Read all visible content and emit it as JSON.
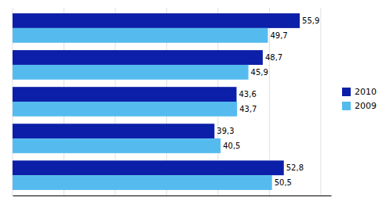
{
  "chart_data": {
    "type": "bar",
    "orientation": "horizontal",
    "categories": [
      null,
      null,
      null,
      null,
      null
    ],
    "series": [
      {
        "name": "2010",
        "color": "#0c1fa8",
        "values": [
          55.9,
          48.7,
          43.6,
          39.3,
          52.8
        ],
        "value_labels": [
          "55,9",
          "48,7",
          "43,6",
          "39,3",
          "52,8"
        ]
      },
      {
        "name": "2009",
        "color": "#55bbee",
        "values": [
          49.7,
          45.9,
          43.7,
          40.5,
          50.5
        ],
        "value_labels": [
          "49,7",
          "45,9",
          "43,7",
          "40,5",
          "50,5"
        ]
      }
    ],
    "xlim": [
      0,
      62
    ],
    "xticks": [
      0,
      10,
      20,
      30,
      40,
      50,
      60
    ],
    "grid": true,
    "legend": "right",
    "data_labels": true,
    "tick_labels": false
  }
}
